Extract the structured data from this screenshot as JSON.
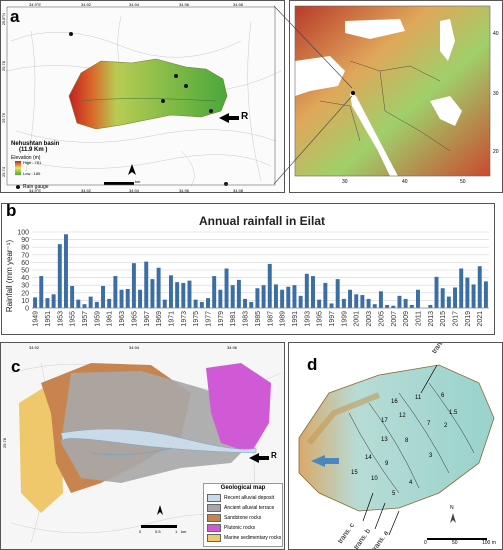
{
  "panels": {
    "a": {
      "letter": "a",
      "basin_title": "Nehushtan basin",
      "basin_area": "(11.9 Km )",
      "elevation_label": "Elevation (m)",
      "high_label": "High : 781",
      "low_label": "Low : 185",
      "rain_gauge_label": "Rain gauge",
      "marker_r": "R",
      "scale_unit": "km",
      "top_ticks": [
        "34.9°E",
        "34.92",
        "34.94",
        "34.96",
        "34.98"
      ],
      "bottom_ticks": [
        "34.9°E",
        "34.92",
        "34.94",
        "34.96",
        "34.98"
      ],
      "left_ticks": [
        "29.8°N",
        "29.78",
        "29.76",
        "29.74"
      ],
      "map_ticks_x": [
        "30",
        "40",
        "50"
      ],
      "map_ticks_y": [
        "40",
        "30",
        "20"
      ],
      "colors": {
        "high": "#c42020",
        "mid": "#f2e25a",
        "low": "#4aa83a"
      }
    },
    "b": {
      "letter": "b",
      "title": "Annual rainfall in Eilat",
      "ylabel": "Rainfall (mm year⁻¹)",
      "bar_color": "#3a6ea5"
    },
    "c": {
      "letter": "c",
      "legend_title": "Geological map",
      "marker_r": "R",
      "ticks_x": [
        "34.92",
        "34.94",
        "34.96"
      ],
      "ticks_y": [
        "29.78"
      ],
      "legend": [
        {
          "label": "Recent alluvial deposit",
          "color": "#c9dbe8"
        },
        {
          "label": "Ancient alluvial terrace",
          "color": "#a7a7a7"
        },
        {
          "label": "Sandstone rocks",
          "color": "#c8844f"
        },
        {
          "label": "Plutonic rocks",
          "color": "#d05ad6"
        },
        {
          "label": "Marine sedimentary rocks",
          "color": "#eec86a"
        }
      ],
      "scale_values": [
        "0",
        "0.5",
        "1"
      ],
      "scale_unit": "km"
    },
    "d": {
      "letter": "d",
      "transects": [
        "trans. d",
        "trans. c",
        "trans. b",
        "trans. a"
      ],
      "numbers": [
        "16",
        "11",
        "6",
        "17",
        "12",
        "1.5",
        "2",
        "13",
        "7",
        "8",
        "3",
        "14",
        "9",
        "15",
        "10",
        "4",
        "5"
      ],
      "scale_values": [
        "0",
        "50",
        "100 m"
      ],
      "north": "N"
    }
  },
  "chart_data": {
    "type": "bar",
    "title": "Annual rainfall in Eilat",
    "xlabel": "",
    "ylabel": "Rainfall (mm year⁻¹)",
    "ylim": [
      0,
      100
    ],
    "yticks": [
      0,
      10,
      20,
      30,
      40,
      50,
      60,
      70,
      80,
      90,
      100
    ],
    "grid": true,
    "categories": [
      "1949",
      "1950",
      "1951",
      "1952",
      "1953",
      "1954",
      "1955",
      "1956",
      "1957",
      "1958",
      "1959",
      "1960",
      "1961",
      "1962",
      "1963",
      "1964",
      "1965",
      "1966",
      "1967",
      "1968",
      "1969",
      "1970",
      "1971",
      "1972",
      "1973",
      "1974",
      "1975",
      "1976",
      "1977",
      "1978",
      "1979",
      "1980",
      "1981",
      "1982",
      "1983",
      "1984",
      "1985",
      "1986",
      "1987",
      "1988",
      "1989",
      "1990",
      "1991",
      "1992",
      "1993",
      "1994",
      "1995",
      "1996",
      "1997",
      "1998",
      "1999",
      "2000",
      "2001",
      "2002",
      "2003",
      "2004",
      "2005",
      "2006",
      "2007",
      "2008",
      "2009",
      "2010",
      "2011",
      "2012",
      "2013",
      "2014",
      "2015",
      "2016",
      "2017",
      "2018",
      "2019",
      "2020",
      "2021",
      "2022"
    ],
    "tick_labels": [
      "1949",
      "1951",
      "1953",
      "1955",
      "1957",
      "1959",
      "1961",
      "1963",
      "1965",
      "1967",
      "1969",
      "1971",
      "1973",
      "1975",
      "1977",
      "1979",
      "1981",
      "1983",
      "1985",
      "1987",
      "1989",
      "1991",
      "1993",
      "1995",
      "1997",
      "1999",
      "2001",
      "2003",
      "2005",
      "2007",
      "2009",
      "2011",
      "2013",
      "2015",
      "2017",
      "2019",
      "2021"
    ],
    "values": [
      14,
      42,
      13,
      18,
      84,
      97,
      29,
      11,
      5,
      15,
      8,
      29,
      12,
      42,
      24,
      25,
      59,
      24,
      61,
      38,
      53,
      11,
      43,
      34,
      33,
      36,
      11,
      8,
      13,
      42,
      24,
      52,
      30,
      37,
      12,
      8,
      26,
      30,
      58,
      31,
      24,
      28,
      30,
      16,
      45,
      42,
      11,
      33,
      6,
      38,
      12,
      24,
      18,
      17,
      12,
      5,
      22,
      4,
      3,
      16,
      12,
      4,
      24,
      0,
      4,
      41,
      26,
      15,
      27,
      52,
      40,
      31,
      55,
      35
    ]
  }
}
